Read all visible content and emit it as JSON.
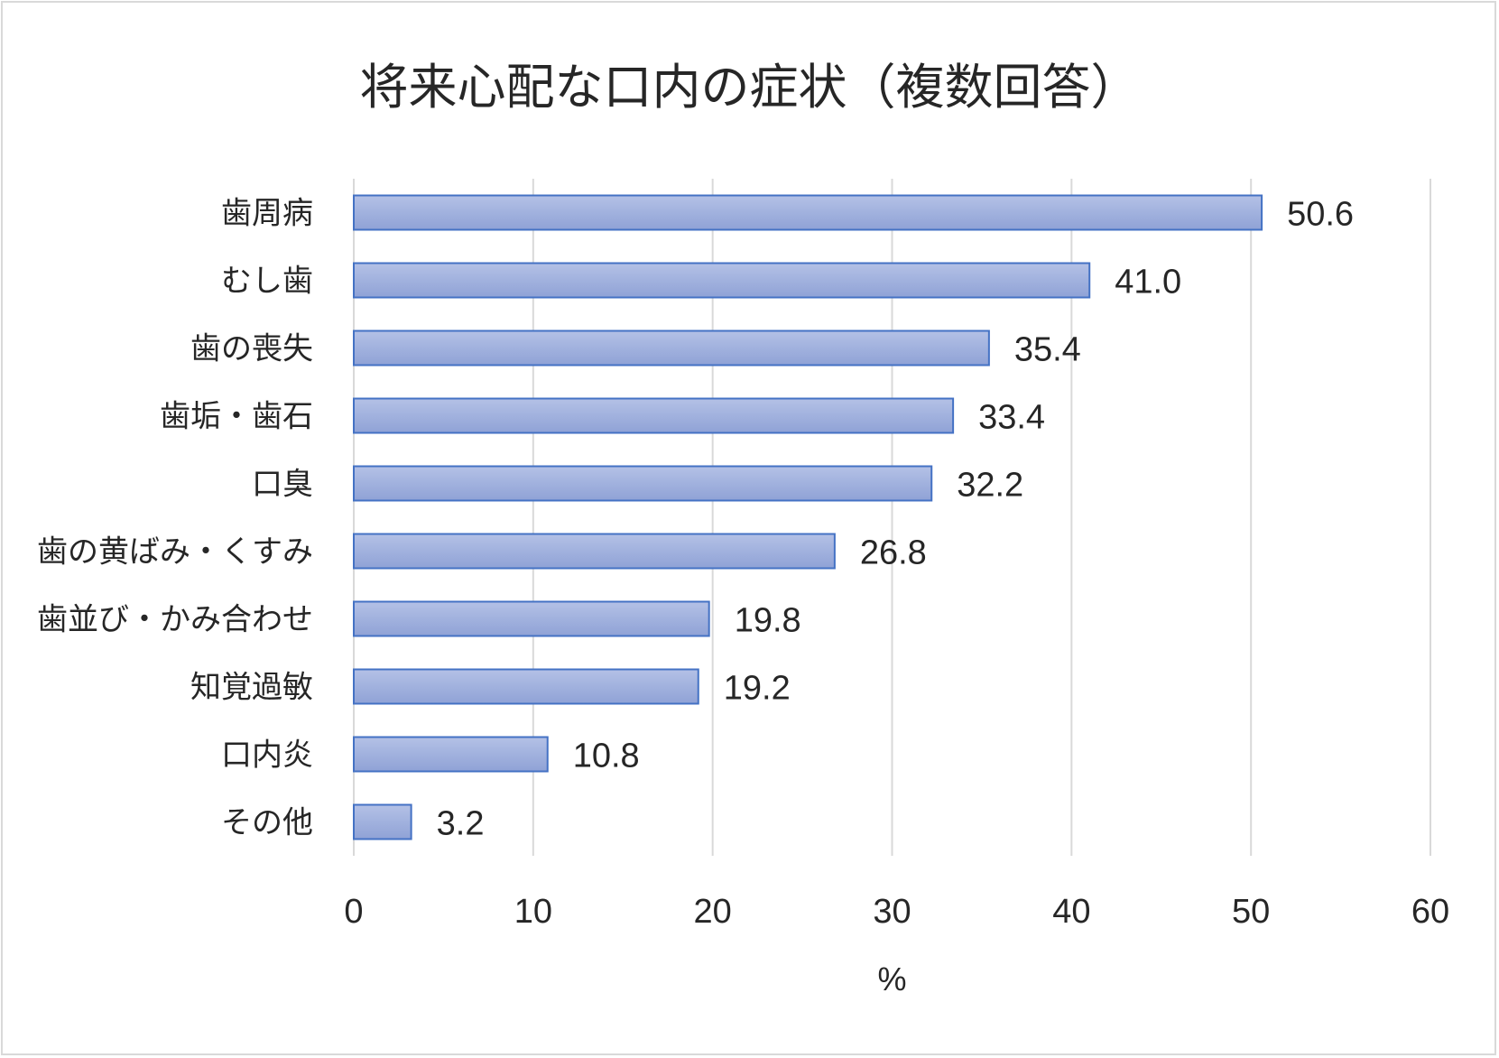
{
  "chart_data": {
    "type": "bar",
    "orientation": "horizontal",
    "title": "将来心配な口内の症状（複数回答）",
    "categories": [
      "歯周病",
      "むし歯",
      "歯の喪失",
      "歯垢・歯石",
      "口臭",
      "歯の黄ばみ・くすみ",
      "歯並び・かみ合わせ",
      "知覚過敏",
      "口内炎",
      "その他"
    ],
    "values": [
      50.6,
      41.0,
      35.4,
      33.4,
      32.2,
      26.8,
      19.8,
      19.2,
      10.8,
      3.2
    ],
    "value_labels": [
      "50.6",
      "41.0",
      "35.4",
      "33.4",
      "32.2",
      "26.8",
      "19.8",
      "19.2",
      "10.8",
      "3.2"
    ],
    "xticks": [
      "0",
      "10",
      "20",
      "30",
      "40",
      "50",
      "60"
    ],
    "xlim": [
      0,
      60
    ],
    "xlabel": "%",
    "ylabel": "",
    "grid": true,
    "bar_color": "#9fb0dc",
    "bar_edge_color": "#4472c4"
  }
}
